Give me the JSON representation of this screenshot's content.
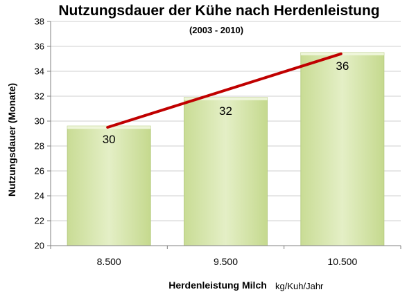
{
  "chart_data": {
    "type": "bar",
    "title": "Nutzungsdauer der Kühe nach Herdenleistung",
    "subtitle": "(2003 - 2010)",
    "xlabel": "Herdenleistung Milch",
    "xunit": "kg/Kuh/Jahr",
    "ylabel": "Nutzungsdauer (Monate)",
    "ylim": [
      20,
      38
    ],
    "yticks": [
      20,
      22,
      24,
      26,
      28,
      30,
      32,
      34,
      36,
      38
    ],
    "grid": true,
    "categories": [
      "8.500",
      "9.500",
      "10.500"
    ],
    "values": [
      29.6,
      31.9,
      35.5
    ],
    "data_labels": [
      "30",
      "32",
      "36"
    ],
    "trendline": {
      "type": "line",
      "start": 29.5,
      "end": 35.4,
      "color": "#c00000"
    },
    "bar_color": "#d8e6b0",
    "bar_stroke": "#b7cc83"
  }
}
